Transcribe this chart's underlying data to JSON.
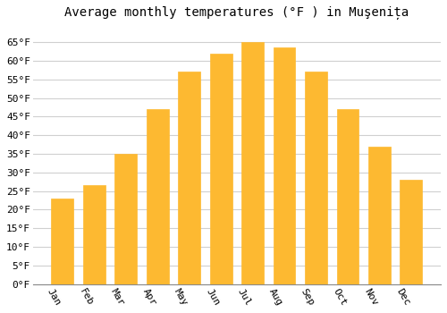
{
  "title": "Average monthly temperatures (°F ) in Muşenița",
  "months": [
    "Jan",
    "Feb",
    "Mar",
    "Apr",
    "May",
    "Jun",
    "Jul",
    "Aug",
    "Sep",
    "Oct",
    "Nov",
    "Dec"
  ],
  "values": [
    23,
    26.5,
    35,
    47,
    57,
    62,
    65,
    63.5,
    57,
    47,
    37,
    28
  ],
  "bar_color": "#FDB931",
  "bar_edge_color": "#FDB931",
  "background_color": "#ffffff",
  "grid_color": "#d0d0d0",
  "ylim": [
    0,
    70
  ],
  "yticks": [
    0,
    5,
    10,
    15,
    20,
    25,
    30,
    35,
    40,
    45,
    50,
    55,
    60,
    65
  ],
  "ylabel_suffix": "°F",
  "title_fontsize": 10,
  "tick_fontsize": 8,
  "font_family": "monospace",
  "xlabel_rotation": -60
}
